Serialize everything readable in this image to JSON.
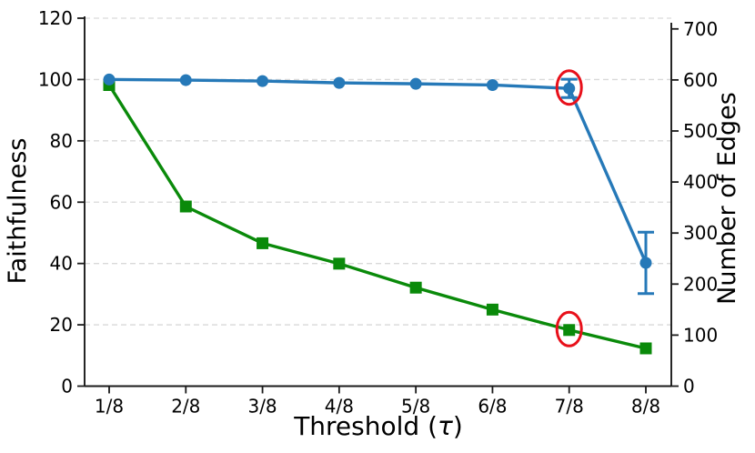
{
  "figure": {
    "background": "#ffffff"
  },
  "chart_data": {
    "type": "line",
    "title": "",
    "xlabel": "Threshold (τ)",
    "xlabel_parts": {
      "prefix": "Threshold (",
      "tau": "τ",
      "suffix": ")"
    },
    "categories": [
      "1/8",
      "2/8",
      "3/8",
      "4/8",
      "5/8",
      "6/8",
      "7/8",
      "8/8"
    ],
    "grid": {
      "show": true,
      "color": "#d9d9d9",
      "style": "dashed"
    },
    "left_axis": {
      "label": "Faithfulness",
      "color": "#2679b8",
      "ticks": [
        0,
        20,
        40,
        60,
        80,
        100,
        120
      ],
      "lim": [
        0,
        120
      ]
    },
    "right_axis": {
      "label": "Number of Edges",
      "color": "#0a8a0a",
      "ticks": [
        0,
        100,
        200,
        300,
        400,
        500,
        600,
        700
      ],
      "lim": [
        0,
        721
      ]
    },
    "series": [
      {
        "name": "Faithfulness",
        "slug": "faithfulness",
        "axis": "left",
        "color": "#2679b8",
        "marker": "circle",
        "values": [
          100,
          99.8,
          99.5,
          98.9,
          98.6,
          98.2,
          97.1,
          40.2
        ],
        "errors": [
          0,
          0,
          0,
          0,
          0,
          0,
          3,
          10
        ]
      },
      {
        "name": "Number of Edges",
        "slug": "edges",
        "axis": "right",
        "color": "#0a8a0a",
        "marker": "square",
        "values": [
          590,
          352,
          280,
          240,
          193,
          150,
          110,
          74
        ],
        "errors": [
          0,
          0,
          0,
          0,
          0,
          0,
          0,
          0
        ]
      }
    ],
    "annotations": [
      {
        "type": "ellipse",
        "series": "Faithfulness",
        "category": "7/8",
        "color": "#e8101a"
      },
      {
        "type": "ellipse",
        "series": "Number of Edges",
        "category": "7/8",
        "color": "#e8101a"
      }
    ]
  }
}
